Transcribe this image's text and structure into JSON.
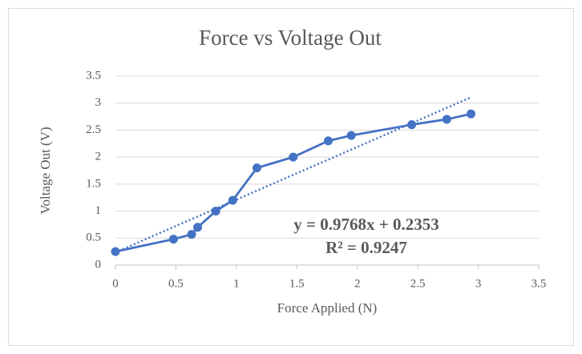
{
  "chart_data": {
    "type": "scatter-line",
    "title": "Force vs Voltage Out",
    "x_label": "Force Applied (N)",
    "y_label": "Voltage Out  (V)",
    "x": [
      0,
      0.48,
      0.63,
      0.68,
      0.83,
      0.97,
      1.17,
      1.47,
      1.76,
      1.95,
      2.45,
      2.74,
      2.94
    ],
    "series": [
      {
        "name": "Voltage Out",
        "color": "#4472c4",
        "values": [
          0.25,
          0.48,
          0.57,
          0.7,
          1.0,
          1.2,
          1.8,
          2.0,
          2.3,
          2.4,
          2.6,
          2.7,
          2.8
        ]
      }
    ],
    "trendline": {
      "slope": 0.9768,
      "intercept": 0.2353,
      "r2": 0.9247
    },
    "annotations": [
      "y = 0.9768x + 0.2353",
      "R² = 0.9247"
    ],
    "xlim": [
      0,
      3.5
    ],
    "xticks": [
      0,
      0.5,
      1,
      1.5,
      2,
      2.5,
      3,
      3.5
    ],
    "ylim": [
      0,
      3.5
    ],
    "yticks": [
      0,
      0.5,
      1,
      1.5,
      2,
      2.5,
      3,
      3.5
    ],
    "grid": true
  }
}
